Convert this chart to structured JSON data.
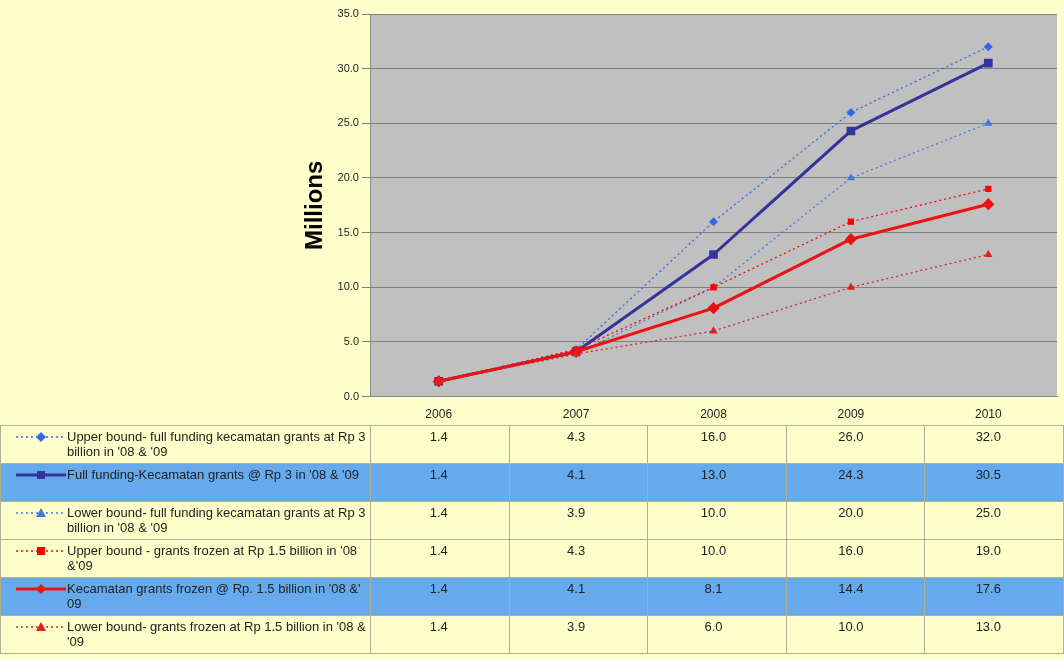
{
  "chart_data": {
    "type": "line",
    "ylabel": "Millions",
    "categories": [
      "2006",
      "2007",
      "2008",
      "2009",
      "2010"
    ],
    "series": [
      {
        "name": "Upper bound- full funding kecamatan grants at Rp 3 billion in '08 & '09",
        "color": "#3366ee",
        "marker": "diamond",
        "line_style": "dotted",
        "values": [
          1.4,
          4.3,
          16.0,
          26.0,
          32.0
        ],
        "value_labels": [
          "1.4",
          "4.3",
          "16.0",
          "26.0",
          "32.0"
        ]
      },
      {
        "name": "Full funding-Kecamatan grants @ Rp 3 in '08 & '09",
        "color": "#333399",
        "marker": "square",
        "line_style": "solid",
        "values": [
          1.4,
          4.1,
          13.0,
          24.3,
          30.5
        ],
        "value_labels": [
          "1.4",
          "4.1",
          "13.0",
          "24.3",
          "30.5"
        ]
      },
      {
        "name": "Lower bound- full funding kecamatan grants at Rp 3 billion in '08 & '09",
        "color": "#4477dd",
        "marker": "triangle",
        "line_style": "dotted",
        "values": [
          1.4,
          3.9,
          10.0,
          20.0,
          25.0
        ],
        "value_labels": [
          "1.4",
          "3.9",
          "10.0",
          "20.0",
          "25.0"
        ]
      },
      {
        "name": "Upper bound - grants frozen at Rp 1.5 billion in '08 &'09",
        "color": "#ff0000",
        "marker": "square",
        "line_style": "dotted",
        "values": [
          1.4,
          4.3,
          10.0,
          16.0,
          19.0
        ],
        "value_labels": [
          "1.4",
          "4.3",
          "10.0",
          "16.0",
          "19.0"
        ]
      },
      {
        "name": "Kecamatan grants frozen @ Rp. 1.5 billion in '08 &' 09",
        "color": "#ee1111",
        "marker": "diamond",
        "line_style": "solid",
        "values": [
          1.4,
          4.1,
          8.1,
          14.4,
          17.6
        ],
        "value_labels": [
          "1.4",
          "4.1",
          "8.1",
          "14.4",
          "17.6"
        ]
      },
      {
        "name": "Lower bound- grants frozen at Rp 1.5 billion in '08 & '09",
        "color": "#dd2222",
        "marker": "triangle",
        "line_style": "dotted",
        "values": [
          1.4,
          3.9,
          6.0,
          10.0,
          13.0
        ],
        "value_labels": [
          "1.4",
          "3.9",
          "6.0",
          "10.0",
          "13.0"
        ]
      }
    ],
    "ylim": [
      0,
      35
    ],
    "yticks": [
      {
        "value": 0,
        "label": "0.0"
      },
      {
        "value": 5,
        "label": "5.0"
      },
      {
        "value": 10,
        "label": "10.0"
      },
      {
        "value": 15,
        "label": "15.0"
      },
      {
        "value": 20,
        "label": "20.0"
      },
      {
        "value": 25,
        "label": "25.0"
      },
      {
        "value": 30,
        "label": "30.0"
      },
      {
        "value": 35,
        "label": "35.0"
      }
    ],
    "grid": "y",
    "legend": "bottom"
  }
}
